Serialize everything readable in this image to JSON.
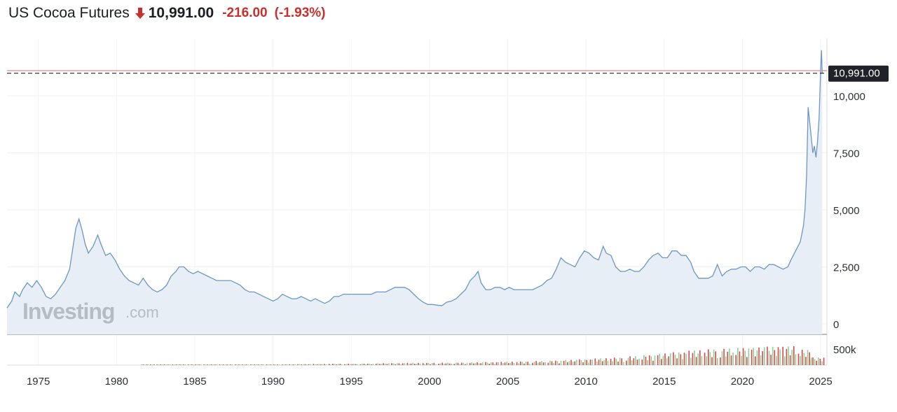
{
  "header": {
    "title": "US Cocoa Futures",
    "price": "10,991.00",
    "change": "-216.00",
    "change_pct": "(-1.93%)",
    "direction_icon": "arrow-down-icon",
    "negative_color": "#c9302c"
  },
  "watermark": {
    "brand": "Investing",
    "suffix": ".com"
  },
  "colors": {
    "line": "#6b97c2",
    "area": "#e8eef6",
    "last_price_line": "#e08a8a",
    "badge_bg": "#1f2329",
    "vol_up": "#8fcf9c",
    "vol_down": "#d44a4a"
  },
  "chart_data": {
    "type": "area",
    "series_name": "US Cocoa Futures",
    "last_price": 10991,
    "last_price_label": "10,991.00",
    "y_ticks": [
      "10,000",
      "7,500",
      "5,000",
      "2,500",
      "0"
    ],
    "y_tick_values": [
      10000,
      7500,
      5000,
      2500,
      0
    ],
    "ylim": [
      0,
      11500
    ],
    "xlim": [
      1973.0,
      2025.4
    ],
    "x_tick_labels": [
      "1975",
      "1980",
      "1985",
      "1990",
      "1995",
      "2000",
      "2005",
      "2010",
      "2015",
      "2020",
      "2025"
    ],
    "x_tick_values": [
      1975,
      1980,
      1985,
      1990,
      1995,
      2000,
      2005,
      2010,
      2015,
      2020,
      2025
    ],
    "points": [
      [
        1973.0,
        700
      ],
      [
        1973.3,
        1000
      ],
      [
        1973.5,
        1400
      ],
      [
        1973.8,
        1200
      ],
      [
        1974.0,
        1500
      ],
      [
        1974.3,
        1800
      ],
      [
        1974.6,
        1600
      ],
      [
        1974.9,
        1900
      ],
      [
        1975.2,
        1600
      ],
      [
        1975.5,
        1200
      ],
      [
        1975.8,
        1100
      ],
      [
        1976.1,
        1300
      ],
      [
        1976.4,
        1600
      ],
      [
        1976.7,
        1900
      ],
      [
        1977.0,
        2400
      ],
      [
        1977.2,
        3300
      ],
      [
        1977.4,
        4200
      ],
      [
        1977.6,
        4600
      ],
      [
        1977.8,
        4100
      ],
      [
        1978.0,
        3500
      ],
      [
        1978.2,
        3100
      ],
      [
        1978.5,
        3400
      ],
      [
        1978.8,
        3900
      ],
      [
        1979.0,
        3500
      ],
      [
        1979.3,
        3000
      ],
      [
        1979.6,
        3100
      ],
      [
        1979.9,
        2800
      ],
      [
        1980.2,
        2400
      ],
      [
        1980.5,
        2100
      ],
      [
        1980.8,
        1900
      ],
      [
        1981.1,
        1800
      ],
      [
        1981.4,
        1700
      ],
      [
        1981.7,
        2000
      ],
      [
        1982.0,
        1700
      ],
      [
        1982.3,
        1500
      ],
      [
        1982.6,
        1400
      ],
      [
        1982.9,
        1500
      ],
      [
        1983.2,
        1700
      ],
      [
        1983.5,
        2100
      ],
      [
        1983.8,
        2300
      ],
      [
        1984.0,
        2500
      ],
      [
        1984.3,
        2500
      ],
      [
        1984.6,
        2300
      ],
      [
        1984.9,
        2200
      ],
      [
        1985.2,
        2300
      ],
      [
        1985.5,
        2200
      ],
      [
        1985.8,
        2100
      ],
      [
        1986.1,
        2000
      ],
      [
        1986.4,
        1900
      ],
      [
        1986.7,
        1900
      ],
      [
        1987.0,
        1900
      ],
      [
        1987.3,
        1900
      ],
      [
        1987.6,
        1800
      ],
      [
        1987.9,
        1700
      ],
      [
        1988.2,
        1500
      ],
      [
        1988.5,
        1400
      ],
      [
        1988.8,
        1400
      ],
      [
        1989.1,
        1300
      ],
      [
        1989.4,
        1200
      ],
      [
        1989.7,
        1100
      ],
      [
        1990.0,
        1000
      ],
      [
        1990.3,
        1100
      ],
      [
        1990.6,
        1300
      ],
      [
        1990.9,
        1200
      ],
      [
        1991.2,
        1100
      ],
      [
        1991.5,
        1100
      ],
      [
        1991.8,
        1200
      ],
      [
        1992.1,
        1100
      ],
      [
        1992.4,
        1000
      ],
      [
        1992.7,
        1100
      ],
      [
        1993.0,
        1000
      ],
      [
        1993.3,
        900
      ],
      [
        1993.6,
        1000
      ],
      [
        1993.9,
        1200
      ],
      [
        1994.2,
        1200
      ],
      [
        1994.5,
        1300
      ],
      [
        1994.8,
        1300
      ],
      [
        1995.1,
        1300
      ],
      [
        1995.4,
        1300
      ],
      [
        1995.7,
        1300
      ],
      [
        1996.0,
        1300
      ],
      [
        1996.3,
        1300
      ],
      [
        1996.6,
        1400
      ],
      [
        1996.9,
        1400
      ],
      [
        1997.2,
        1400
      ],
      [
        1997.5,
        1500
      ],
      [
        1997.8,
        1600
      ],
      [
        1998.1,
        1600
      ],
      [
        1998.4,
        1600
      ],
      [
        1998.7,
        1500
      ],
      [
        1999.0,
        1300
      ],
      [
        1999.3,
        1100
      ],
      [
        1999.6,
        950
      ],
      [
        1999.9,
        850
      ],
      [
        2000.2,
        850
      ],
      [
        2000.5,
        820
      ],
      [
        2000.8,
        800
      ],
      [
        2001.1,
        950
      ],
      [
        2001.4,
        1000
      ],
      [
        2001.7,
        1100
      ],
      [
        2002.0,
        1300
      ],
      [
        2002.3,
        1500
      ],
      [
        2002.6,
        1900
      ],
      [
        2002.9,
        2100
      ],
      [
        2003.1,
        2300
      ],
      [
        2003.3,
        1800
      ],
      [
        2003.6,
        1500
      ],
      [
        2003.9,
        1500
      ],
      [
        2004.2,
        1600
      ],
      [
        2004.5,
        1600
      ],
      [
        2004.8,
        1500
      ],
      [
        2005.1,
        1600
      ],
      [
        2005.4,
        1500
      ],
      [
        2005.7,
        1500
      ],
      [
        2006.0,
        1500
      ],
      [
        2006.3,
        1500
      ],
      [
        2006.6,
        1500
      ],
      [
        2006.9,
        1600
      ],
      [
        2007.2,
        1700
      ],
      [
        2007.5,
        1900
      ],
      [
        2007.8,
        2000
      ],
      [
        2008.1,
        2400
      ],
      [
        2008.4,
        2900
      ],
      [
        2008.7,
        2700
      ],
      [
        2009.0,
        2600
      ],
      [
        2009.3,
        2500
      ],
      [
        2009.6,
        2900
      ],
      [
        2009.9,
        3200
      ],
      [
        2010.2,
        3100
      ],
      [
        2010.5,
        2900
      ],
      [
        2010.8,
        2800
      ],
      [
        2011.1,
        3400
      ],
      [
        2011.3,
        3100
      ],
      [
        2011.6,
        3000
      ],
      [
        2011.9,
        2500
      ],
      [
        2012.2,
        2300
      ],
      [
        2012.5,
        2300
      ],
      [
        2012.8,
        2400
      ],
      [
        2013.1,
        2300
      ],
      [
        2013.4,
        2300
      ],
      [
        2013.7,
        2500
      ],
      [
        2014.0,
        2800
      ],
      [
        2014.3,
        3000
      ],
      [
        2014.6,
        3100
      ],
      [
        2014.9,
        2900
      ],
      [
        2015.2,
        2900
      ],
      [
        2015.5,
        3200
      ],
      [
        2015.8,
        3200
      ],
      [
        2016.1,
        3000
      ],
      [
        2016.4,
        3000
      ],
      [
        2016.7,
        2700
      ],
      [
        2016.9,
        2300
      ],
      [
        2017.2,
        2000
      ],
      [
        2017.5,
        2000
      ],
      [
        2017.8,
        2000
      ],
      [
        2018.1,
        2100
      ],
      [
        2018.4,
        2600
      ],
      [
        2018.7,
        2100
      ],
      [
        2019.0,
        2300
      ],
      [
        2019.3,
        2400
      ],
      [
        2019.6,
        2400
      ],
      [
        2019.9,
        2500
      ],
      [
        2020.2,
        2500
      ],
      [
        2020.5,
        2300
      ],
      [
        2020.8,
        2500
      ],
      [
        2021.1,
        2500
      ],
      [
        2021.4,
        2400
      ],
      [
        2021.7,
        2600
      ],
      [
        2022.0,
        2600
      ],
      [
        2022.3,
        2500
      ],
      [
        2022.6,
        2400
      ],
      [
        2022.9,
        2500
      ],
      [
        2023.1,
        2800
      ],
      [
        2023.4,
        3200
      ],
      [
        2023.7,
        3600
      ],
      [
        2023.9,
        4300
      ],
      [
        2024.0,
        5000
      ],
      [
        2024.1,
        6500
      ],
      [
        2024.2,
        9500
      ],
      [
        2024.35,
        8500
      ],
      [
        2024.5,
        7500
      ],
      [
        2024.6,
        7800
      ],
      [
        2024.7,
        7300
      ],
      [
        2024.8,
        8000
      ],
      [
        2024.9,
        9000
      ],
      [
        2025.0,
        11200
      ],
      [
        2025.05,
        12000
      ],
      [
        2025.1,
        10991
      ]
    ],
    "volume_label": "500k",
    "volume_ylim": [
      0,
      900000
    ],
    "volume_bars": [
      [
        1982,
        8000,
        "up"
      ],
      [
        1983,
        9000,
        "up"
      ],
      [
        1984,
        12000,
        "down"
      ],
      [
        1985,
        13000,
        "up"
      ],
      [
        1986,
        14000,
        "down"
      ],
      [
        1987,
        15000,
        "up"
      ],
      [
        1988,
        17000,
        "down"
      ],
      [
        1989,
        20000,
        "up"
      ],
      [
        1990,
        24000,
        "down"
      ],
      [
        1991,
        28000,
        "up"
      ],
      [
        1992,
        33000,
        "down"
      ],
      [
        1993,
        38000,
        "up"
      ],
      [
        1994,
        45000,
        "down"
      ],
      [
        1995,
        48000,
        "up"
      ],
      [
        1996,
        52000,
        "down"
      ],
      [
        1997,
        60000,
        "up"
      ],
      [
        1998,
        65000,
        "down"
      ],
      [
        1999,
        70000,
        "up"
      ],
      [
        2000,
        75000,
        "down"
      ],
      [
        2001,
        80000,
        "up"
      ],
      [
        2002,
        85000,
        "down"
      ],
      [
        2003,
        90000,
        "up"
      ],
      [
        2004,
        100000,
        "down"
      ],
      [
        2005,
        110000,
        "up"
      ],
      [
        2006,
        120000,
        "down"
      ],
      [
        2007,
        135000,
        "up"
      ],
      [
        2008,
        150000,
        "down"
      ],
      [
        2009,
        170000,
        "up"
      ],
      [
        2010,
        190000,
        "down"
      ],
      [
        2011,
        220000,
        "up"
      ],
      [
        2012,
        250000,
        "down"
      ],
      [
        2013,
        290000,
        "up"
      ],
      [
        2014,
        330000,
        "down"
      ],
      [
        2015,
        380000,
        "up"
      ],
      [
        2016,
        420000,
        "down"
      ],
      [
        2017,
        480000,
        "up"
      ],
      [
        2018,
        520000,
        "down"
      ],
      [
        2019,
        540000,
        "up"
      ],
      [
        2020,
        560000,
        "down"
      ],
      [
        2021,
        580000,
        "up"
      ],
      [
        2022,
        600000,
        "down"
      ],
      [
        2023,
        620000,
        "up"
      ],
      [
        2024,
        500000,
        "down"
      ],
      [
        2024.8,
        250000,
        "down"
      ]
    ]
  }
}
